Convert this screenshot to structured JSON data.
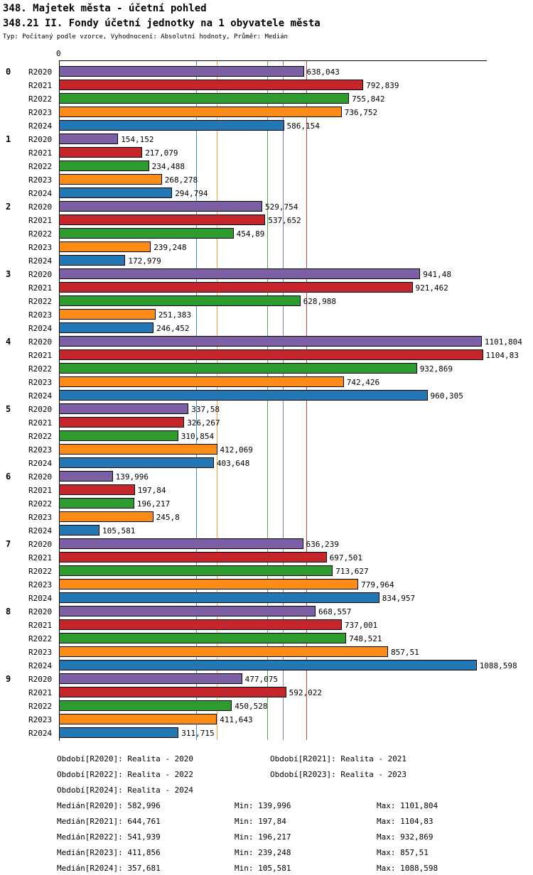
{
  "header": {
    "title": "348. Majetek města - účetní pohled",
    "subtitle": "348.21 II. Fondy účetní jednotky na 1 obyvatele města",
    "meta": "Typ: Počítaný podle vzorce, Vyhodnocení: Absolutní hodnoty, Průměr: Medián"
  },
  "chart_data": {
    "type": "bar",
    "orientation": "horizontal",
    "value_format": "czech-decimal-comma",
    "axis": {
      "origin_label": "0",
      "xmin": 0,
      "xmax": 1115,
      "grid": "median-lines-only"
    },
    "series": [
      {
        "name": "R2020",
        "label": "Realita - 2020",
        "color": "#7d5fa6",
        "median": "582,996",
        "min": "139,996",
        "max": "1101,804"
      },
      {
        "name": "R2021",
        "label": "Realita - 2021",
        "color": "#c5262c",
        "median": "644,761",
        "min": "197,84",
        "max": "1104,83"
      },
      {
        "name": "R2022",
        "label": "Realita - 2022",
        "color": "#2e9b2e",
        "median": "541,939",
        "min": "196,217",
        "max": "932,869"
      },
      {
        "name": "R2023",
        "label": "Realita - 2023",
        "color": "#fb8c17",
        "median": "411,856",
        "min": "239,248",
        "max": "857,51"
      },
      {
        "name": "R2024",
        "label": "Realita - 2024",
        "color": "#2277b4",
        "median": "357,681",
        "min": "105,581",
        "max": "1088,598"
      }
    ],
    "groups": [
      {
        "label": "0",
        "values": [
          "638,043",
          "792,839",
          "755,842",
          "736,752",
          "586,154"
        ]
      },
      {
        "label": "1",
        "values": [
          "154,152",
          "217,079",
          "234,488",
          "268,278",
          "294,794"
        ]
      },
      {
        "label": "2",
        "values": [
          "529,754",
          "537,652",
          "454,89",
          "239,248",
          "172,979"
        ]
      },
      {
        "label": "3",
        "values": [
          "941,48",
          "921,462",
          "628,988",
          "251,383",
          "246,452"
        ]
      },
      {
        "label": "4",
        "values": [
          "1101,804",
          "1104,83",
          "932,869",
          "742,426",
          "960,305"
        ]
      },
      {
        "label": "5",
        "values": [
          "337,58",
          "326,267",
          "310,854",
          "412,069",
          "403,648"
        ]
      },
      {
        "label": "6",
        "values": [
          "139,996",
          "197,84",
          "196,217",
          "245,8",
          "105,581"
        ]
      },
      {
        "label": "7",
        "values": [
          "636,239",
          "697,501",
          "713,627",
          "779,964",
          "834,957"
        ]
      },
      {
        "label": "8",
        "values": [
          "668,557",
          "737,001",
          "748,521",
          "857,51",
          "1088,598"
        ]
      },
      {
        "label": "9",
        "values": [
          "477,075",
          "592,022",
          "450,528",
          "411,643",
          "311,715"
        ]
      }
    ]
  },
  "legend": {
    "items": [
      "Období[R2020]: Realita - 2020",
      "Období[R2021]: Realita - 2021",
      "Období[R2022]: Realita - 2022",
      "Období[R2023]: Realita - 2023",
      "Období[R2024]: Realita - 2024"
    ]
  },
  "stats": {
    "rows": [
      {
        "median": "Medián[R2020]: 582,996",
        "min": "Min: 139,996",
        "max": "Max: 1101,804"
      },
      {
        "median": "Medián[R2021]: 644,761",
        "min": "Min: 197,84",
        "max": "Max: 1104,83"
      },
      {
        "median": "Medián[R2022]: 541,939",
        "min": "Min: 196,217",
        "max": "Max: 932,869"
      },
      {
        "median": "Medián[R2023]: 411,856",
        "min": "Min: 239,248",
        "max": "Max: 857,51"
      },
      {
        "median": "Medián[R2024]: 357,681",
        "min": "Min: 105,581",
        "max": "Max: 1088,598"
      }
    ]
  }
}
